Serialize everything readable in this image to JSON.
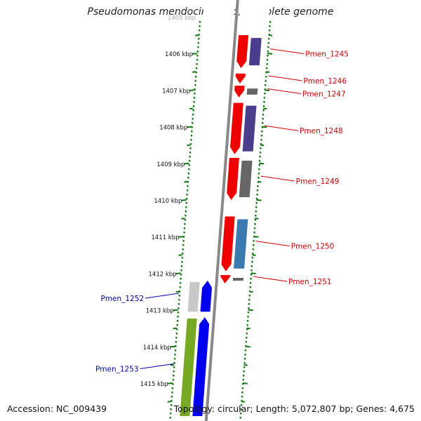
{
  "header": {
    "title": "Pseudomonas mendocina ymp, complete genome"
  },
  "footer": {
    "accession": "Accession: NC_009439",
    "topology": "Topology: circular; Length: 5,072,807 bp; Genes: 4,675"
  },
  "ruler": {
    "ticks": [
      {
        "kbp": 1405,
        "label": "1405 kbp"
      },
      {
        "kbp": 1406,
        "label": "1406 kbp"
      },
      {
        "kbp": 1407,
        "label": "1407 kbp"
      },
      {
        "kbp": 1408,
        "label": "1408 kbp"
      },
      {
        "kbp": 1409,
        "label": "1409 kbp"
      },
      {
        "kbp": 1410,
        "label": "1410 kbp"
      },
      {
        "kbp": 1411,
        "label": "1411 kbp"
      },
      {
        "kbp": 1412,
        "label": "1412 kbp"
      },
      {
        "kbp": 1413,
        "label": "1413 kbp"
      },
      {
        "kbp": 1414,
        "label": "1414 kbp"
      },
      {
        "kbp": 1415,
        "label": "1415 kbp"
      }
    ]
  },
  "colors": {
    "plus_cds": "#0000ee",
    "minus_cds": "#ee0000",
    "gene": "#77aa22",
    "cog_purple": "#4a3d8c",
    "cog_gray": "#666666",
    "cog_lightgray": "#c8c8c8",
    "cog_blue": "#3a7ab0",
    "backbone": "#888888",
    "tick_green": "#117711",
    "label_red": "#cc0000",
    "label_blue": "#0000aa"
  },
  "genes": [
    {
      "name": "Pmen_1245",
      "strand": "minus",
      "start": 1405.5,
      "end": 1406.4,
      "cog": "purple"
    },
    {
      "name": "Pmen_1246",
      "strand": "minus",
      "start": 1406.55,
      "end": 1406.82,
      "cog": "none"
    },
    {
      "name": "Pmen_1247",
      "strand": "minus",
      "start": 1406.88,
      "end": 1407.2,
      "cog": "gray"
    },
    {
      "name": "Pmen_1248",
      "strand": "minus",
      "start": 1407.35,
      "end": 1408.75,
      "cog": "purple"
    },
    {
      "name": "Pmen_1249",
      "strand": "minus",
      "start": 1408.85,
      "end": 1410.0,
      "cog": "gray"
    },
    {
      "name": "Pmen_1250",
      "strand": "minus",
      "start": 1410.45,
      "end": 1411.95,
      "cog": "lightblue"
    },
    {
      "name": "Pmen_1251",
      "strand": "minus",
      "start": 1412.05,
      "end": 1412.28,
      "cog": "gray"
    },
    {
      "name": "Pmen_1252",
      "strand": "plus",
      "start": 1412.2,
      "end": 1413.05,
      "cog": "lightgray"
    },
    {
      "name": "Pmen_1253",
      "strand": "plus",
      "start": 1413.2,
      "end": 1415.9,
      "cog": "gene"
    }
  ]
}
